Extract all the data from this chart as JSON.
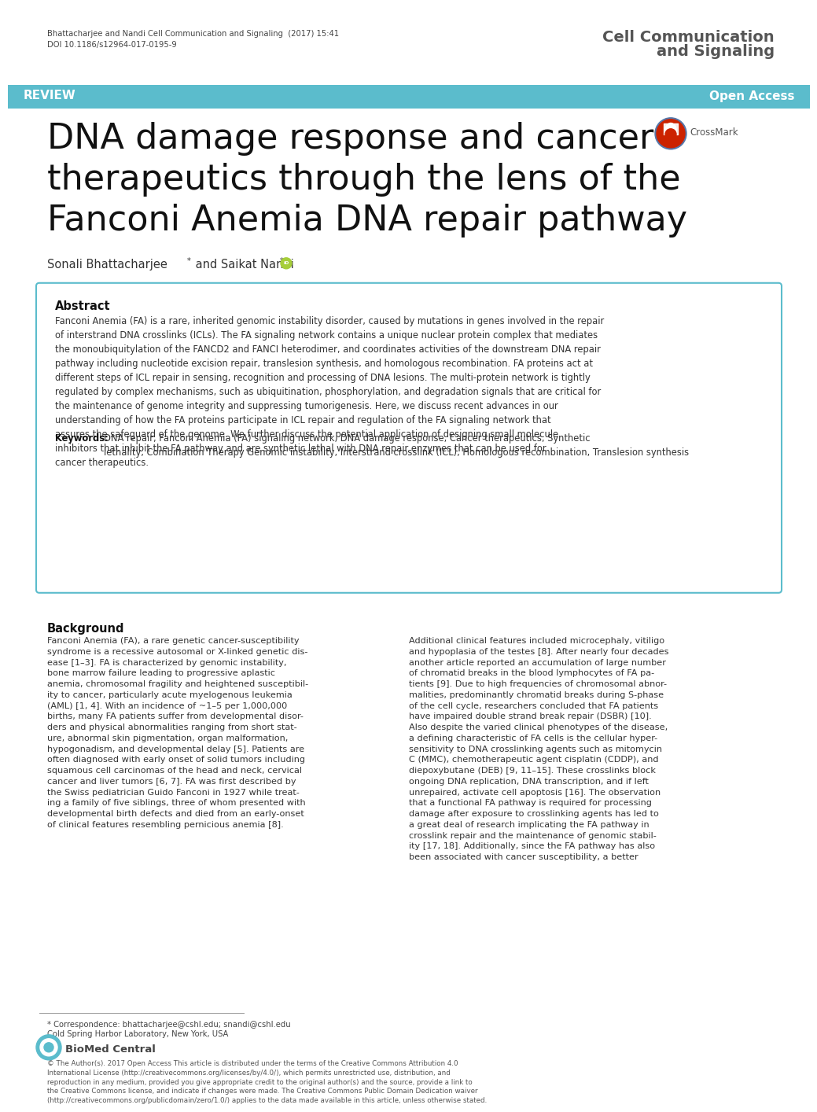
{
  "bg_color": "#ffffff",
  "header_citation": "Bhattacharjee and Nandi Cell Communication and Signaling  (2017) 15:41",
  "header_doi": "DOI 10.1186/s12964-017-0195-9",
  "journal_name_line1": "Cell Communication",
  "journal_name_line2": "and Signaling",
  "review_bar_color": "#5bbccc",
  "review_text": "REVIEW",
  "open_access_text": "Open Access",
  "title_line1": "DNA damage response and cancer",
  "title_line2": "therapeutics through the lens of the",
  "title_line3": "Fanconi Anemia DNA repair pathway",
  "authors": "Sonali Bhattacharjee",
  "authors2": " and Saikat Nandi",
  "abstract_title": "Abstract",
  "abstract_box_border": "#5bbccc",
  "abstract_body": "Fanconi Anemia (FA) is a rare, inherited genomic instability disorder, caused by mutations in genes involved in the repair\nof interstrand DNA crosslinks (ICLs). The FA signaling network contains a unique nuclear protein complex that mediates\nthe monoubiquitylation of the FANCD2 and FANCI heterodimer, and coordinates activities of the downstream DNA repair\npathway including nucleotide excision repair, translesion synthesis, and homologous recombination. FA proteins act at\ndifferent steps of ICL repair in sensing, recognition and processing of DNA lesions. The multi-protein network is tightly\nregulated by complex mechanisms, such as ubiquitination, phosphorylation, and degradation signals that are critical for\nthe maintenance of genome integrity and suppressing tumorigenesis. Here, we discuss recent advances in our\nunderstanding of how the FA proteins participate in ICL repair and regulation of the FA signaling network that\nassures the safeguard of the genome. We further discuss the potential application of designing small molecule\ninhibitors that inhibit the FA pathway and are synthetic lethal with DNA repair enzymes that can be used for\ncancer therapeutics.",
  "keywords_label": "Keywords:",
  "keywords_body": "DNA repair, Fanconi Anemia (FA) signaling network, DNA damage response, Cancer therapeutics, Synthetic\nlethality, Combination Therapy Genomic instability, Interstrand crosslink (ICL), Homologous recombination, Translesion synthesis",
  "background_title": "Background",
  "background_col1": "Fanconi Anemia (FA), a rare genetic cancer-susceptibility\nsyndrome is a recessive autosomal or X-linked genetic dis-\nease [1–3]. FA is characterized by genomic instability,\nbone marrow failure leading to progressive aplastic\nanemia, chromosomal fragility and heightened susceptibil-\nity to cancer, particularly acute myelogenous leukemia\n(AML) [1, 4]. With an incidence of ~1–5 per 1,000,000\nbirths, many FA patients suffer from developmental disor-\nders and physical abnormalities ranging from short stat-\nure, abnormal skin pigmentation, organ malformation,\nhypogonadism, and developmental delay [5]. Patients are\noften diagnosed with early onset of solid tumors including\nsquamous cell carcinomas of the head and neck, cervical\ncancer and liver tumors [6, 7]. FA was first described by\nthe Swiss pediatrician Guido Fanconi in 1927 while treat-\ning a family of five siblings, three of whom presented with\ndevelopmental birth defects and died from an early-onset\nof clinical features resembling pernicious anemia [8].",
  "background_col2": "Additional clinical features included microcephaly, vitiligo\nand hypoplasia of the testes [8]. After nearly four decades\nanother article reported an accumulation of large number\nof chromatid breaks in the blood lymphocytes of FA pa-\ntients [9]. Due to high frequencies of chromosomal abnor-\nmalities, predominantly chromatid breaks during S-phase\nof the cell cycle, researchers concluded that FA patients\nhave impaired double strand break repair (DSBR) [10].\nAlso despite the varied clinical phenotypes of the disease,\na defining characteristic of FA cells is the cellular hyper-\nsensitivity to DNA crosslinking agents such as mitomycin\nC (MMC), chemotherapeutic agent cisplatin (CDDP), and\ndiepoxybutane (DEB) [9, 11–15]. These crosslinks block\nongoing DNA replication, DNA transcription, and if left\nunrepaired, activate cell apoptosis [16]. The observation\nthat a functional FA pathway is required for processing\ndamage after exposure to crosslinking agents has led to\na great deal of research implicating the FA pathway in\ncrosslink repair and the maintenance of genomic stabil-\nity [17, 18]. Additionally, since the FA pathway has also\nbeen associated with cancer susceptibility, a better",
  "footnote_correspondence": "* Correspondence: bhattacharjee@cshl.edu; snandi@cshl.edu",
  "footnote_institute": "Cold Spring Harbor Laboratory, New York, USA",
  "biomed_text": "BioMed Central",
  "copyright_text": "© The Author(s). 2017 Open Access This article is distributed under the terms of the Creative Commons Attribution 4.0\nInternational License (http://creativecommons.org/licenses/by/4.0/), which permits unrestricted use, distribution, and\nreproduction in any medium, provided you give appropriate credit to the original author(s) and the source, provide a link to\nthe Creative Commons license, and indicate if changes were made. The Creative Commons Public Domain Dedication waiver\n(http://creativecommons.org/publicdomain/zero/1.0/) applies to the data made available in this article, unless otherwise stated."
}
